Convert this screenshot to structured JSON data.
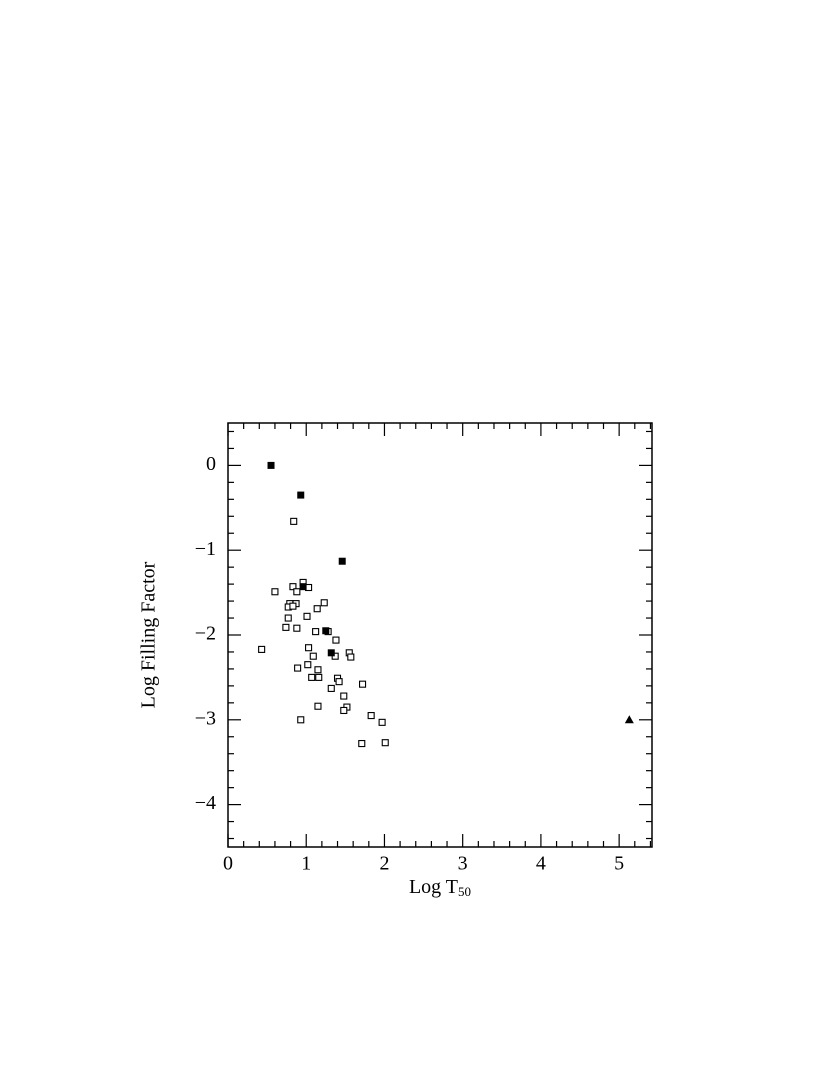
{
  "chart_data": {
    "type": "scatter",
    "xlabel": {
      "text": "Log T",
      "subscript": "50"
    },
    "ylabel": "Log Filling Factor",
    "xlim": [
      0,
      5.42
    ],
    "ylim": [
      -4.5,
      0.5
    ],
    "xticks": [
      0,
      1,
      2,
      3,
      4,
      5
    ],
    "yticks": [
      -4,
      -3,
      -2,
      -1,
      0
    ],
    "xminorticks": [
      0.2,
      0.4,
      0.6,
      0.8,
      1.2,
      1.4,
      1.6,
      1.8,
      2.2,
      2.4,
      2.6,
      2.8,
      3.2,
      3.4,
      3.6,
      3.8,
      4.2,
      4.4,
      4.6,
      4.8,
      5.2,
      5.4
    ],
    "yminorticks": [
      -4.4,
      -4.2,
      -3.8,
      -3.6,
      -3.4,
      -3.2,
      -2.8,
      -2.6,
      -2.4,
      -2.2,
      -1.8,
      -1.6,
      -1.4,
      -1.2,
      -0.8,
      -0.6,
      -0.4,
      -0.2,
      0.2,
      0.4
    ],
    "series": [
      {
        "marker": "open-square",
        "color": "#000000",
        "x": [
          0.84,
          0.6,
          0.83,
          0.96,
          1.03,
          0.88,
          0.79,
          0.87,
          0.77,
          0.83,
          1.23,
          1.14,
          0.77,
          1.01,
          0.74,
          0.88,
          1.12,
          1.28,
          1.38,
          0.43,
          1.03,
          1.55,
          1.37,
          1.57,
          1.09,
          1.02,
          0.89,
          1.15,
          1.4,
          1.07,
          1.16,
          1.42,
          1.72,
          1.32,
          1.48,
          1.15,
          1.52,
          1.48,
          1.83,
          0.93,
          1.97,
          1.71,
          2.01
        ],
        "values": [
          -0.66,
          -1.49,
          -1.43,
          -1.38,
          -1.44,
          -1.49,
          -1.63,
          -1.63,
          -1.67,
          -1.66,
          -1.62,
          -1.69,
          -1.8,
          -1.78,
          -1.91,
          -1.92,
          -1.96,
          -1.96,
          -2.06,
          -2.17,
          -2.15,
          -2.21,
          -2.25,
          -2.26,
          -2.25,
          -2.35,
          -2.39,
          -2.41,
          -2.51,
          -2.5,
          -2.5,
          -2.55,
          -2.58,
          -2.63,
          -2.72,
          -2.84,
          -2.85,
          -2.89,
          -2.95,
          -3.0,
          -3.03,
          -3.28,
          -3.27
        ]
      },
      {
        "marker": "filled-square",
        "color": "#000000",
        "x": [
          0.55,
          0.93,
          1.46,
          0.96,
          1.25,
          1.32
        ],
        "values": [
          0,
          -0.35,
          -1.13,
          -1.43,
          -1.95,
          -2.21
        ]
      },
      {
        "marker": "filled-triangle",
        "color": "#000000",
        "x": [
          5.13
        ],
        "values": [
          -3.0
        ]
      }
    ]
  }
}
